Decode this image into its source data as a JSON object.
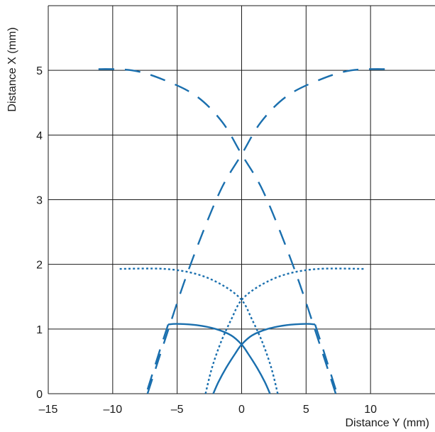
{
  "chart_data": {
    "type": "line",
    "title": "",
    "xlabel": "Distance Y (mm)",
    "ylabel": "Distance X (mm)",
    "xlim": [
      -15,
      15
    ],
    "ylim": [
      0,
      6
    ],
    "xticks": [
      -15,
      -10,
      -5,
      0,
      5,
      10
    ],
    "xtick_labels": [
      "–15",
      "–10",
      "–5",
      "0",
      "5",
      "10"
    ],
    "yticks": [
      0,
      1,
      2,
      3,
      4,
      5
    ],
    "ytick_labels": [
      "0",
      "1",
      "2",
      "3",
      "4",
      "5"
    ],
    "grid": true,
    "line_color": "#1a6fae",
    "series": [
      {
        "style": "solid",
        "points": [
          [
            -2.2,
            0.0
          ],
          [
            -1.8,
            0.18
          ],
          [
            -1.2,
            0.4
          ],
          [
            -0.5,
            0.62
          ],
          [
            0.0,
            0.76
          ],
          [
            0.8,
            0.9
          ],
          [
            2.0,
            1.0
          ],
          [
            3.5,
            1.06
          ],
          [
            5.0,
            1.08
          ],
          [
            5.7,
            1.07
          ]
        ]
      },
      {
        "style": "solid",
        "points": [
          [
            2.2,
            0.0
          ],
          [
            1.8,
            0.18
          ],
          [
            1.2,
            0.4
          ],
          [
            0.5,
            0.62
          ],
          [
            0.0,
            0.76
          ],
          [
            -0.8,
            0.9
          ],
          [
            -2.0,
            1.0
          ],
          [
            -3.5,
            1.06
          ],
          [
            -5.0,
            1.08
          ],
          [
            -5.7,
            1.07
          ]
        ]
      },
      {
        "style": "long-dash",
        "points": [
          [
            5.7,
            1.07
          ],
          [
            6.3,
            0.7
          ],
          [
            7.4,
            0.0
          ]
        ]
      },
      {
        "style": "long-dash",
        "points": [
          [
            -5.7,
            1.07
          ],
          [
            -6.3,
            0.7
          ],
          [
            -7.4,
            0.0
          ]
        ]
      },
      {
        "style": "dotted",
        "points": [
          [
            -2.8,
            0.0
          ],
          [
            -2.3,
            0.4
          ],
          [
            -1.6,
            0.8
          ],
          [
            -0.8,
            1.15
          ],
          [
            0.0,
            1.45
          ],
          [
            1.5,
            1.68
          ],
          [
            3.5,
            1.85
          ],
          [
            6.0,
            1.93
          ],
          [
            9.5,
            1.93
          ]
        ]
      },
      {
        "style": "dotted",
        "points": [
          [
            2.8,
            0.0
          ],
          [
            2.3,
            0.4
          ],
          [
            1.6,
            0.8
          ],
          [
            0.8,
            1.15
          ],
          [
            0.0,
            1.45
          ],
          [
            -1.5,
            1.68
          ],
          [
            -3.5,
            1.85
          ],
          [
            -6.0,
            1.93
          ],
          [
            -9.5,
            1.93
          ]
        ]
      },
      {
        "style": "dashed",
        "points": [
          [
            -7.3,
            0.0
          ],
          [
            -6.0,
            0.8
          ],
          [
            -4.5,
            1.7
          ],
          [
            -3.0,
            2.5
          ],
          [
            -1.5,
            3.2
          ],
          [
            0.0,
            3.7
          ],
          [
            1.5,
            4.2
          ],
          [
            3.5,
            4.6
          ],
          [
            6.0,
            4.85
          ],
          [
            8.5,
            5.0
          ],
          [
            11.5,
            5.02
          ]
        ]
      },
      {
        "style": "dashed",
        "points": [
          [
            7.3,
            0.0
          ],
          [
            6.0,
            0.8
          ],
          [
            4.5,
            1.7
          ],
          [
            3.0,
            2.5
          ],
          [
            1.5,
            3.2
          ],
          [
            0.0,
            3.7
          ],
          [
            -1.5,
            4.2
          ],
          [
            -3.5,
            4.6
          ],
          [
            -6.0,
            4.85
          ],
          [
            -8.5,
            5.0
          ],
          [
            -11.5,
            5.02
          ]
        ]
      }
    ]
  }
}
